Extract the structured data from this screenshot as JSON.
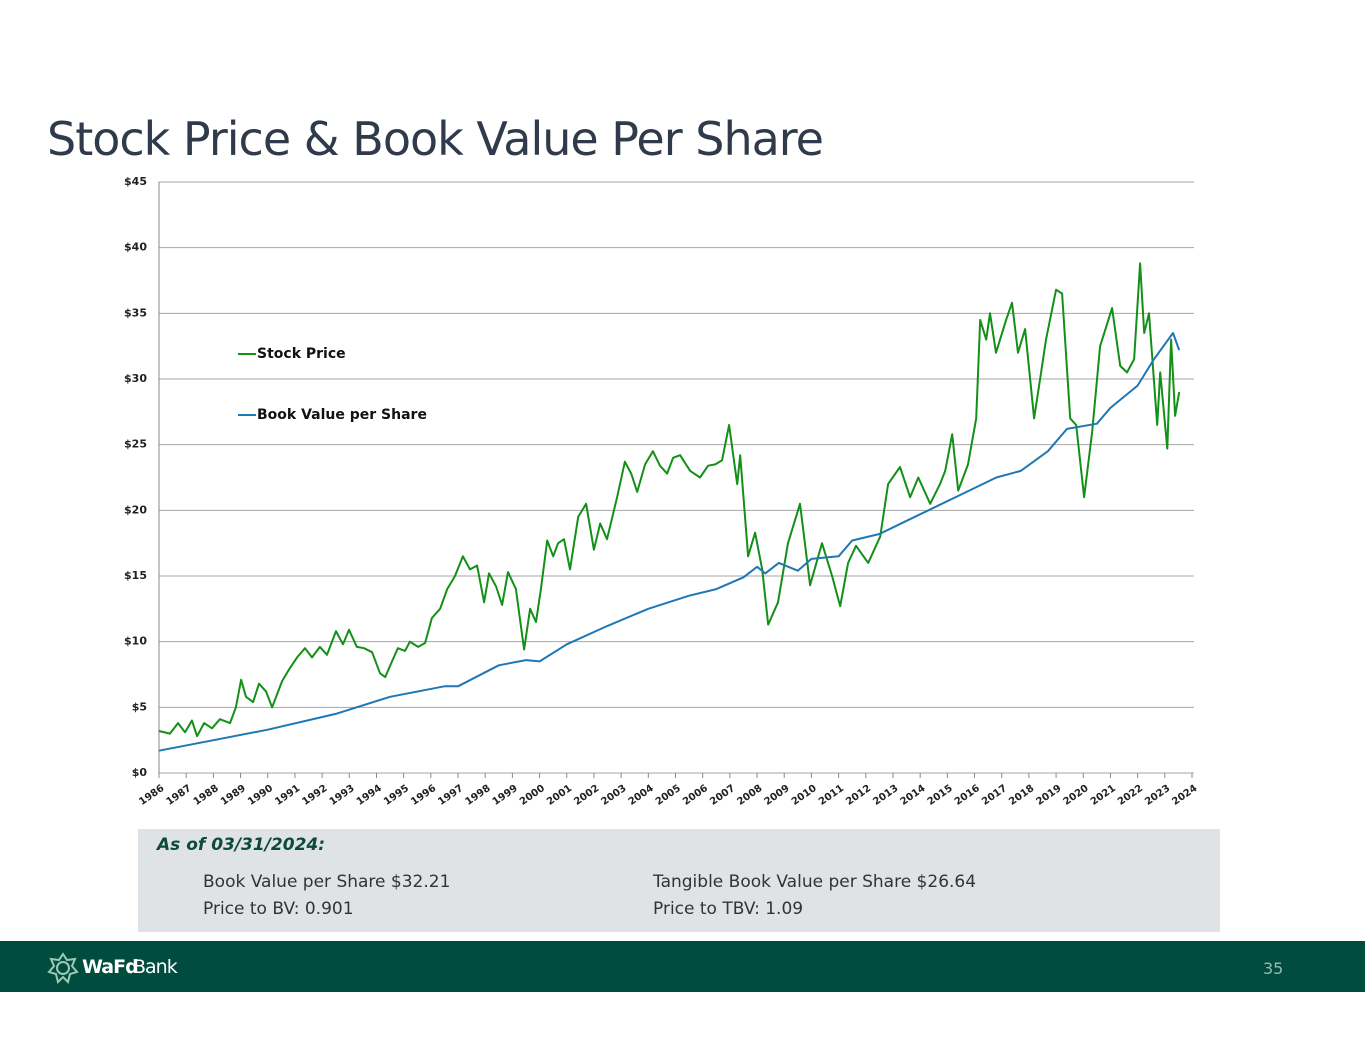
{
  "chart_data": {
    "type": "line",
    "title": "Stock Price & Book Value Per Share",
    "xlim": [
      1986,
      2024
    ],
    "xticks": [
      1986,
      1987,
      1988,
      1989,
      1990,
      1991,
      1992,
      1993,
      1994,
      1995,
      1996,
      1997,
      1998,
      1999,
      2000,
      2001,
      2002,
      2003,
      2004,
      2005,
      2006,
      2007,
      2008,
      2009,
      2010,
      2011,
      2012,
      2013,
      2014,
      2015,
      2016,
      2017,
      2018,
      2019,
      2020,
      2021,
      2022,
      2023,
      2024
    ],
    "ylim": [
      0,
      45
    ],
    "yticks": [
      {
        "value": 0,
        "label": "$0"
      },
      {
        "value": 5,
        "label": "$5"
      },
      {
        "value": 10,
        "label": "$10"
      },
      {
        "value": 15,
        "label": "$15"
      },
      {
        "value": 20,
        "label": "$20"
      },
      {
        "value": 25,
        "label": "$25"
      },
      {
        "value": 30,
        "label": "$30"
      },
      {
        "value": 35,
        "label": "$35"
      },
      {
        "value": 40,
        "label": "$40"
      },
      {
        "value": 45,
        "label": "$45"
      }
    ],
    "grid": true,
    "legend": "left",
    "series": [
      {
        "name": "Stock Price",
        "color": "#139018",
        "x": [
          1986.0,
          1986.4,
          1986.7,
          1986.96,
          1987.21,
          1987.4,
          1987.66,
          1987.95,
          1988.24,
          1988.61,
          1988.83,
          1989.02,
          1989.2,
          1989.46,
          1989.68,
          1989.94,
          1990.16,
          1990.53,
          1990.82,
          1991.08,
          1991.37,
          1991.63,
          1991.92,
          1992.18,
          1992.51,
          1992.77,
          1992.99,
          1993.28,
          1993.54,
          1993.84,
          1994.13,
          1994.32,
          1994.57,
          1994.79,
          1995.05,
          1995.23,
          1995.53,
          1995.79,
          1996.04,
          1996.34,
          1996.6,
          1996.89,
          1997.18,
          1997.44,
          1997.7,
          1997.96,
          1998.14,
          1998.4,
          1998.62,
          1998.84,
          1999.13,
          1999.43,
          1999.65,
          1999.87,
          2000.05,
          2000.28,
          2000.5,
          2000.68,
          2000.9,
          2001.12,
          2001.42,
          2001.71,
          2002.0,
          2002.23,
          2002.48,
          2002.85,
          2003.14,
          2003.37,
          2003.59,
          2003.88,
          2004.17,
          2004.43,
          2004.69,
          2004.91,
          2005.17,
          2005.54,
          2005.9,
          2006.2,
          2006.46,
          2006.71,
          2006.97,
          2007.27,
          2007.38,
          2007.67,
          2007.93,
          2008.19,
          2008.41,
          2008.77,
          2009.14,
          2009.58,
          2009.95,
          2010.39,
          2010.76,
          2011.06,
          2011.35,
          2011.64,
          2012.09,
          2012.53,
          2012.82,
          2013.26,
          2013.63,
          2013.93,
          2014.37,
          2014.73,
          2014.92,
          2015.18,
          2015.4,
          2015.76,
          2016.06,
          2016.21,
          2016.43,
          2016.57,
          2016.79,
          2017.16,
          2017.38,
          2017.6,
          2017.86,
          2018.19,
          2018.45,
          2018.63,
          2019.0,
          2019.22,
          2019.52,
          2019.74,
          2020.03,
          2020.33,
          2020.62,
          2021.06,
          2021.36,
          2021.61,
          2021.87,
          2022.09,
          2022.24,
          2022.42,
          2022.72,
          2022.83,
          2023.09,
          2023.23,
          2023.38,
          2023.53
        ],
        "values": [
          3.2,
          3.0,
          3.8,
          3.1,
          4.0,
          2.8,
          3.8,
          3.4,
          4.1,
          3.8,
          5.0,
          7.1,
          5.8,
          5.4,
          6.8,
          6.2,
          5.0,
          7.0,
          8.0,
          8.8,
          9.5,
          8.8,
          9.6,
          9.0,
          10.8,
          9.8,
          10.9,
          9.6,
          9.5,
          9.2,
          7.6,
          7.3,
          8.5,
          9.5,
          9.3,
          10.0,
          9.6,
          9.9,
          11.8,
          12.5,
          14.0,
          15.0,
          16.5,
          15.5,
          15.8,
          13.0,
          15.2,
          14.2,
          12.8,
          15.3,
          14.0,
          9.4,
          12.5,
          11.5,
          14.0,
          17.7,
          16.5,
          17.5,
          17.8,
          15.5,
          19.5,
          20.5,
          17.0,
          19.0,
          17.8,
          21.0,
          23.7,
          22.8,
          21.4,
          23.5,
          24.5,
          23.4,
          22.8,
          24.0,
          24.2,
          23.0,
          22.5,
          23.4,
          23.5,
          23.8,
          26.5,
          22.0,
          24.2,
          16.5,
          18.3,
          15.5,
          11.3,
          13.0,
          17.5,
          20.5,
          14.3,
          17.5,
          15.0,
          12.7,
          16.0,
          17.3,
          16.0,
          18.0,
          22.0,
          23.3,
          21.0,
          22.5,
          20.5,
          22.0,
          23.0,
          25.8,
          21.5,
          23.5,
          27.0,
          34.5,
          33.0,
          35.0,
          32.0,
          34.5,
          35.8,
          32.0,
          33.8,
          27.0,
          30.5,
          33.0,
          36.8,
          36.5,
          27.0,
          26.5,
          21.0,
          26.0,
          32.5,
          35.4,
          31.0,
          30.5,
          31.5,
          38.8,
          33.5,
          35.0,
          26.5,
          30.5,
          24.7,
          33.0,
          27.2,
          29.0
        ]
      },
      {
        "name": "Book Value per Share",
        "color": "#1f77b4",
        "x": [
          1986.0,
          1988.0,
          1990.0,
          1992.5,
          1994.5,
          1996.5,
          1997.0,
          1998.5,
          1999.5,
          2000.0,
          2001.0,
          2002.5,
          2004.0,
          2005.5,
          2006.5,
          2007.5,
          2008.0,
          2008.3,
          2008.8,
          2009.5,
          2010.0,
          2011.0,
          2011.5,
          2012.5,
          2013.5,
          2014.5,
          2015.5,
          2016.8,
          2017.7,
          2018.7,
          2019.4,
          2020.5,
          2021.0,
          2022.0,
          2022.6,
          2023.3,
          2023.53
        ],
        "values": [
          1.7,
          2.5,
          3.3,
          4.5,
          5.8,
          6.6,
          6.6,
          8.2,
          8.6,
          8.5,
          9.8,
          11.2,
          12.5,
          13.5,
          14.0,
          14.9,
          15.7,
          15.2,
          16.0,
          15.4,
          16.3,
          16.5,
          17.7,
          18.2,
          19.2,
          20.2,
          21.2,
          22.5,
          23.0,
          24.5,
          26.2,
          26.6,
          27.8,
          29.5,
          31.5,
          33.5,
          32.2
        ]
      }
    ]
  },
  "info": {
    "heading": "As of 03/31/2024:",
    "items": [
      "Book Value per Share $32.21",
      "Price to BV:  0.901",
      "Tangible Book Value per Share $26.64",
      "Price to TBV:  1.09"
    ]
  },
  "footer": {
    "logo": "WaFd",
    "logo_suffix": "Bank",
    "page": "35"
  }
}
